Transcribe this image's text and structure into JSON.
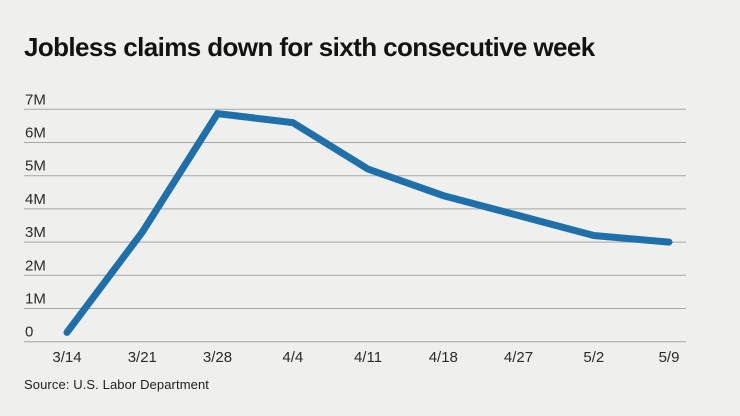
{
  "colors": {
    "background": "#eff0ee",
    "line": "#1f70aa",
    "grid": "#a6a6a4",
    "tick_text": "#2a2a2a",
    "title_text": "#131313",
    "source_text": "#1e1e1e"
  },
  "chart_data": {
    "type": "line",
    "title": "Jobless claims down for sixth consecutive week",
    "source": "Source: U.S. Labor Department",
    "categories": [
      "3/14",
      "3/21",
      "3/28",
      "4/4",
      "4/11",
      "4/18",
      "4/27",
      "5/2",
      "5/9"
    ],
    "values": [
      0.28,
      3.3,
      6.87,
      6.6,
      5.2,
      4.4,
      3.8,
      3.2,
      3.0
    ],
    "unit": "millions of claims",
    "ytick_labels": [
      "0",
      "1M",
      "2M",
      "3M",
      "4M",
      "5M",
      "6M",
      "7M"
    ],
    "ytick_values": [
      0,
      1,
      2,
      3,
      4,
      5,
      6,
      7
    ],
    "ylim": [
      0,
      7
    ],
    "xlabel": "",
    "ylabel": "",
    "grid": "horizontal",
    "legend": "none"
  }
}
